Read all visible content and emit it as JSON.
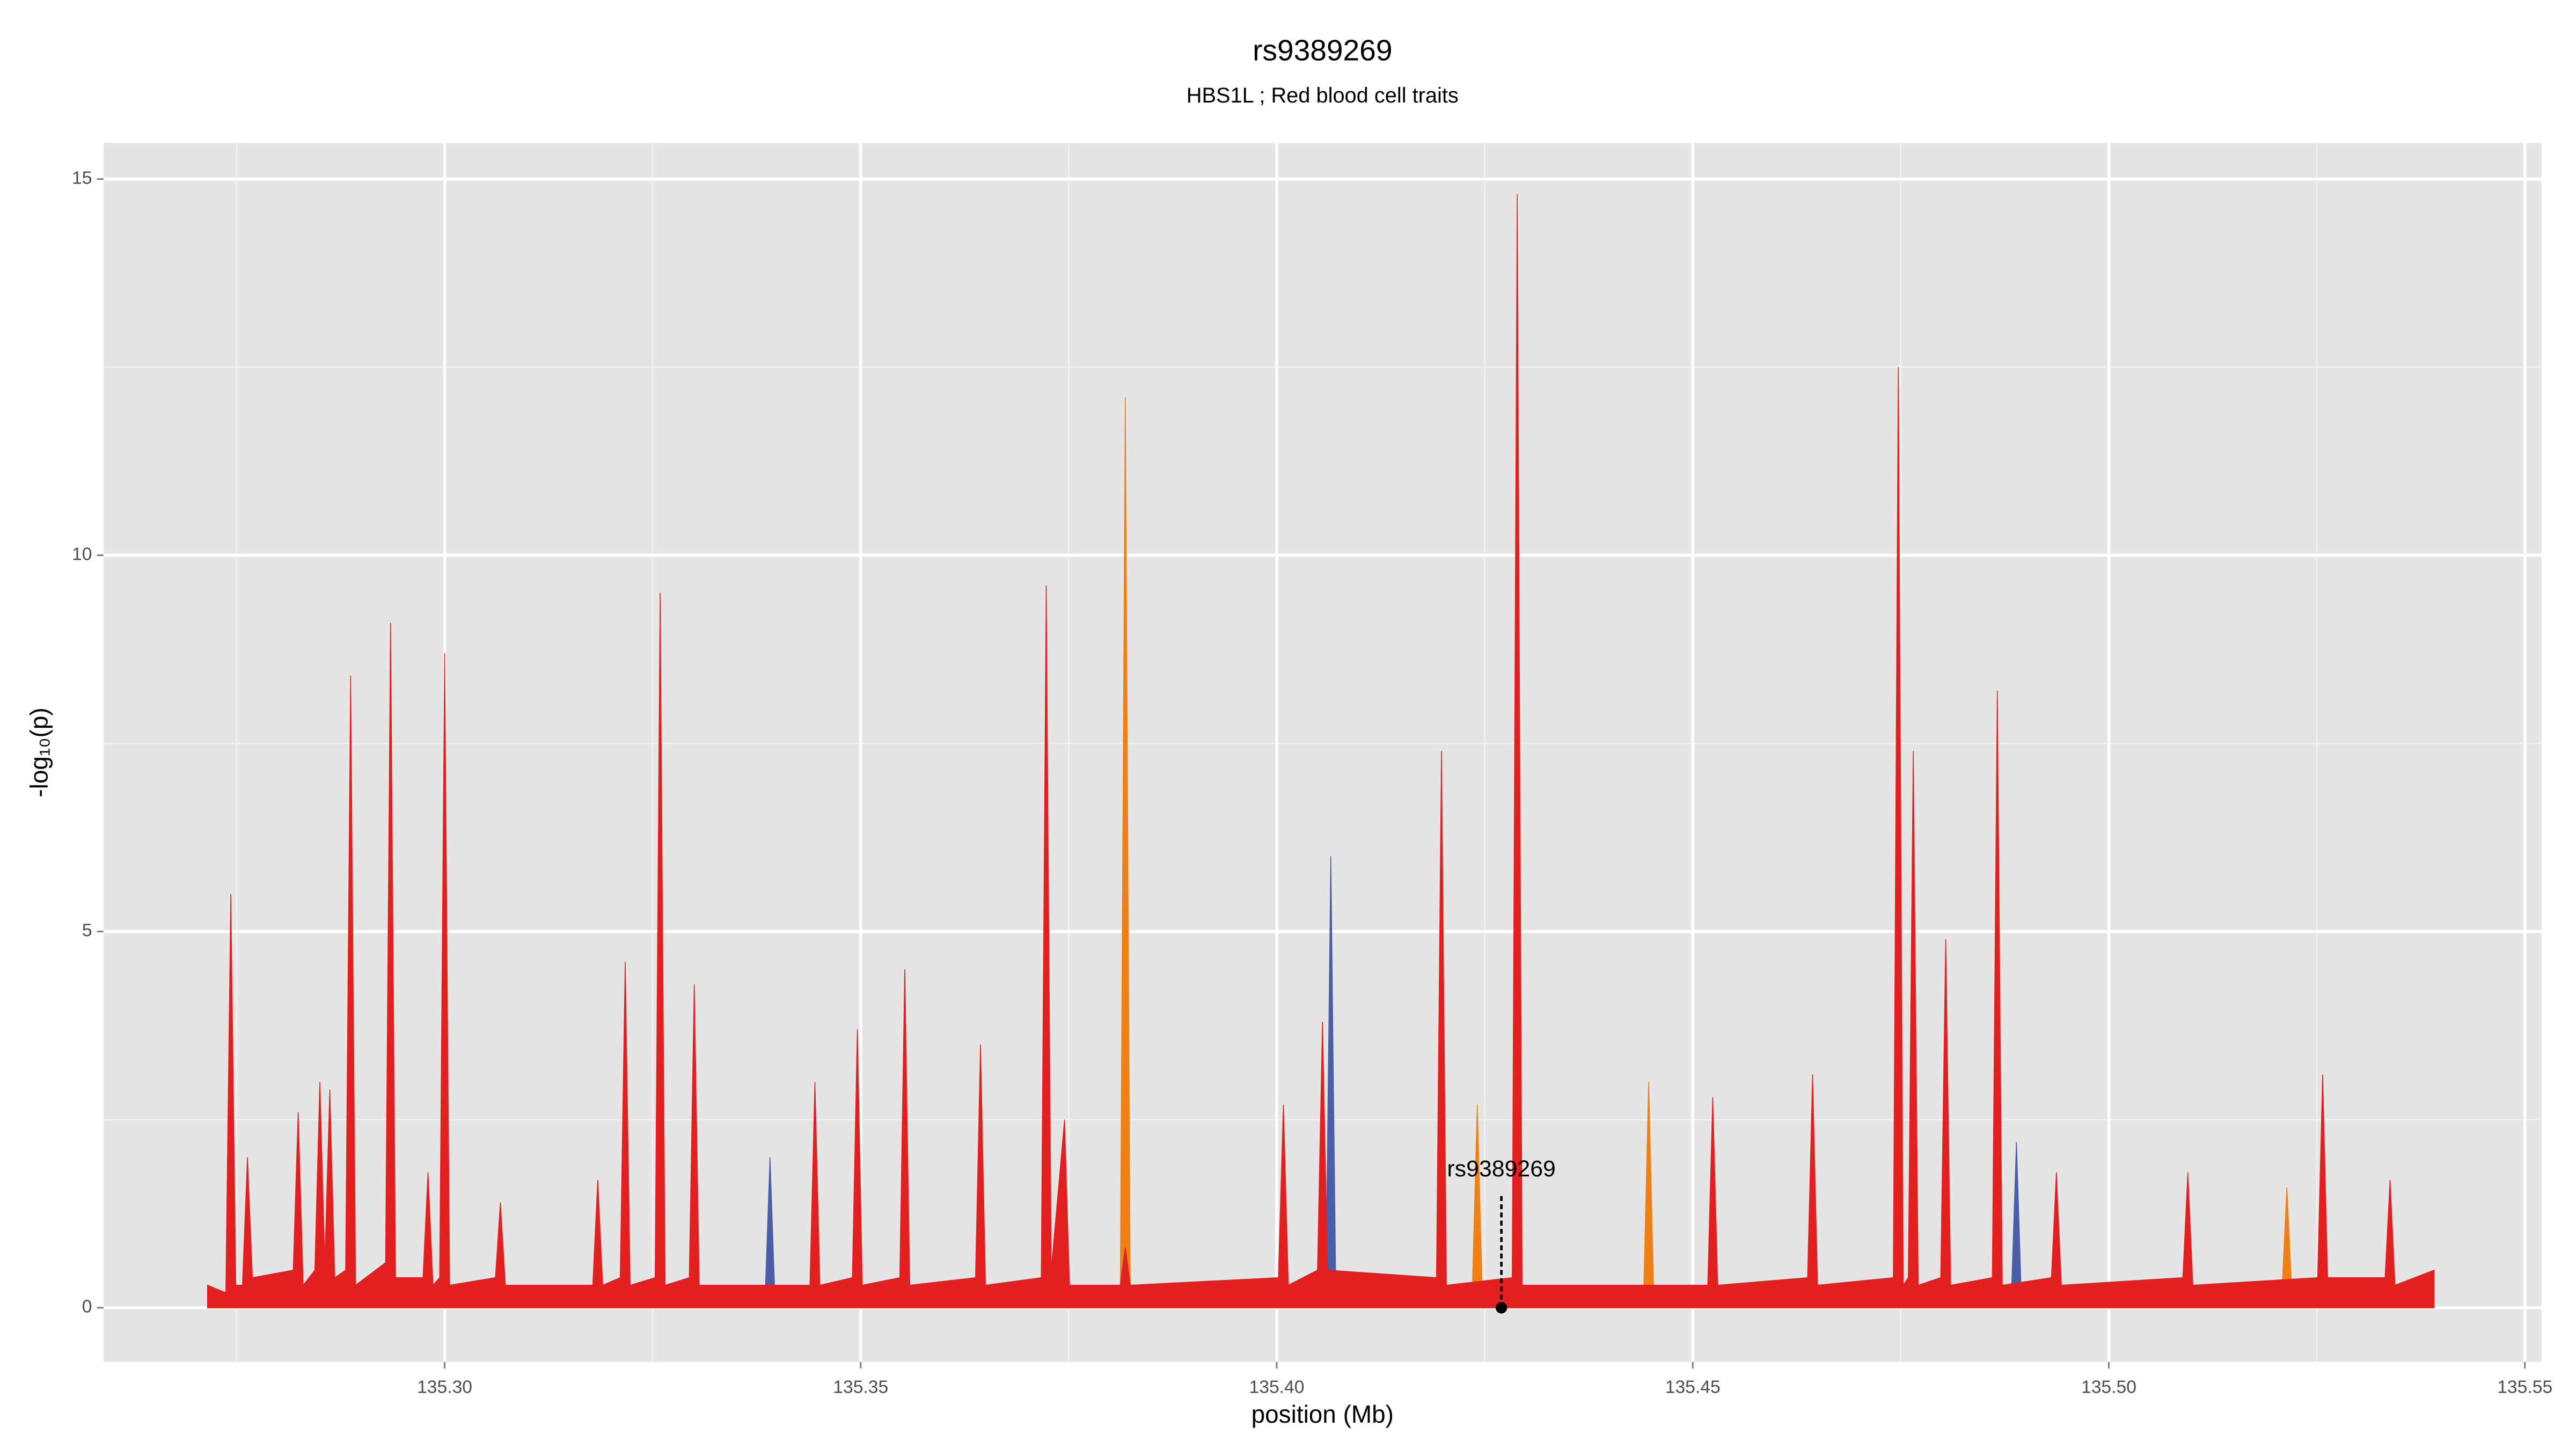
{
  "chart_data": {
    "type": "area",
    "title": "rs9389269",
    "subtitle": "HBS1L ; Red blood cell traits",
    "x_label": "position (Mb)",
    "y_label": "-log₁₀(p)",
    "xlim": [
      135.259,
      135.552
    ],
    "ylim": [
      -0.72,
      15.48
    ],
    "xticks": [
      {
        "value": 135.3,
        "label": "135.30"
      },
      {
        "value": 135.35,
        "label": "135.35"
      },
      {
        "value": 135.4,
        "label": "135.40"
      },
      {
        "value": 135.45,
        "label": "135.45"
      },
      {
        "value": 135.5,
        "label": "135.50"
      },
      {
        "value": 135.55,
        "label": "135.55"
      }
    ],
    "yticks": [
      0,
      5,
      10,
      15
    ],
    "x_minor_grid": [
      135.275,
      135.325,
      135.375,
      135.425,
      135.475,
      135.525
    ],
    "y_minor_grid": [
      2.5,
      7.5,
      12.5
    ],
    "grid": true,
    "series": [
      {
        "color": "#4a5fa8",
        "x": [
          135.2715,
          135.3385,
          135.3391,
          135.3397,
          135.4059,
          135.4065,
          135.4071,
          135.4883,
          135.4889,
          135.4895,
          135.5391
        ],
        "values": [
          0,
          0.1,
          2.0,
          0.1,
          0.2,
          6.0,
          0.2,
          0.2,
          2.2,
          0.1,
          0
        ]
      },
      {
        "color": "#f07f14",
        "x": [
          135.2715,
          135.3812,
          135.3818,
          135.3824,
          135.4235,
          135.4241,
          135.4247,
          135.4441,
          135.4447,
          135.4453,
          135.5208,
          135.5214,
          135.522,
          135.5391
        ],
        "values": [
          0,
          0.2,
          12.1,
          0.2,
          0.2,
          2.7,
          0.2,
          0.2,
          3.0,
          0.2,
          0.2,
          1.6,
          0.2,
          0
        ]
      },
      {
        "color": "#e3201f",
        "x": [
          135.2715,
          135.2737,
          135.2743,
          135.2749,
          135.2757,
          135.2763,
          135.2769,
          135.2818,
          135.2824,
          135.283,
          135.2844,
          135.285,
          135.2856,
          135.2862,
          135.2868,
          135.2881,
          135.2887,
          135.2893,
          135.2929,
          135.2935,
          135.2941,
          135.2974,
          135.298,
          135.2986,
          135.2994,
          135.3,
          135.3006,
          135.3061,
          135.3067,
          135.3073,
          135.3178,
          135.3184,
          135.319,
          135.3211,
          135.3217,
          135.3223,
          135.3253,
          135.3259,
          135.3265,
          135.3294,
          135.33,
          135.3306,
          135.3439,
          135.3445,
          135.3451,
          135.349,
          135.3496,
          135.3502,
          135.3547,
          135.3553,
          135.3559,
          135.3638,
          135.3644,
          135.365,
          135.3717,
          135.3723,
          135.3729,
          135.3745,
          135.3751,
          135.3812,
          135.3818,
          135.3824,
          135.4002,
          135.4008,
          135.4014,
          135.4049,
          135.4055,
          135.4061,
          135.4192,
          135.4198,
          135.4204,
          135.4283,
          135.4289,
          135.4295,
          135.4518,
          135.4524,
          135.453,
          135.4638,
          135.4644,
          135.465,
          135.4741,
          135.4747,
          135.4753,
          135.4759,
          135.4765,
          135.4771,
          135.4798,
          135.4804,
          135.481,
          135.486,
          135.4866,
          135.4872,
          135.4931,
          135.4937,
          135.4943,
          135.5089,
          135.5095,
          135.5101,
          135.5251,
          135.5257,
          135.5263,
          135.5332,
          135.5338,
          135.5344,
          135.5391
        ],
        "values": [
          0.3,
          0.2,
          5.5,
          0.3,
          0.3,
          2.0,
          0.4,
          0.5,
          2.6,
          0.3,
          0.5,
          3.0,
          0.6,
          2.9,
          0.4,
          0.5,
          8.4,
          0.3,
          0.6,
          9.1,
          0.4,
          0.4,
          1.8,
          0.3,
          0.4,
          8.7,
          0.3,
          0.4,
          1.4,
          0.3,
          0.3,
          1.7,
          0.3,
          0.4,
          4.6,
          0.3,
          0.4,
          9.5,
          0.3,
          0.4,
          4.3,
          0.3,
          0.3,
          3.0,
          0.3,
          0.4,
          3.7,
          0.3,
          0.4,
          4.5,
          0.3,
          0.4,
          3.5,
          0.3,
          0.4,
          9.6,
          0.5,
          2.5,
          0.3,
          0.3,
          0.8,
          0.3,
          0.4,
          2.7,
          0.3,
          0.5,
          3.8,
          0.5,
          0.4,
          7.4,
          0.3,
          0.4,
          14.8,
          0.3,
          0.3,
          2.8,
          0.3,
          0.4,
          3.1,
          0.3,
          0.4,
          12.5,
          0.3,
          0.4,
          7.4,
          0.3,
          0.4,
          4.9,
          0.3,
          0.4,
          8.2,
          0.3,
          0.4,
          1.8,
          0.3,
          0.4,
          1.8,
          0.3,
          0.4,
          3.1,
          0.4,
          0.4,
          1.7,
          0.3,
          0.5
        ]
      }
    ],
    "annotation": {
      "text": "rs9389269",
      "x": 135.427,
      "y": 0,
      "line_top": 1.5
    }
  }
}
